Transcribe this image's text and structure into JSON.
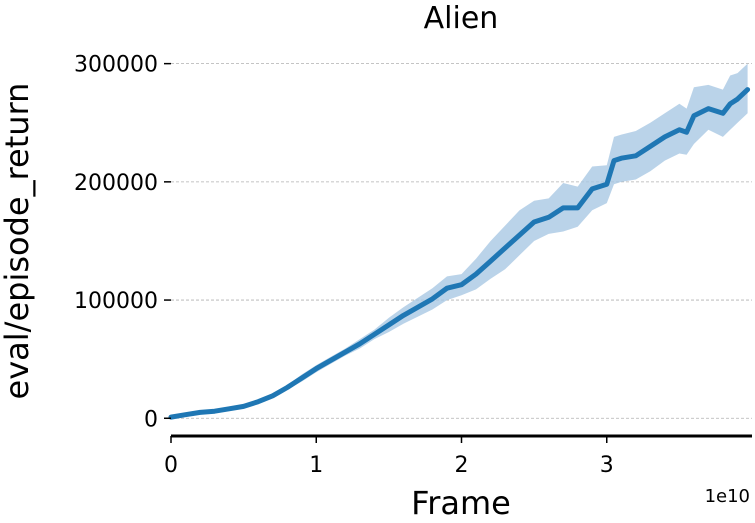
{
  "chart_data": {
    "type": "line",
    "title": "Alien",
    "xlabel": "Frame",
    "ylabel": "eval/episode_return",
    "x_offset_label": "1e10",
    "xlim": [
      0,
      4.0
    ],
    "ylim": [
      -15000,
      320000
    ],
    "xticks": [
      0,
      1,
      2,
      3
    ],
    "xtick_labels": [
      "0",
      "1",
      "2",
      "3"
    ],
    "yticks": [
      0,
      100000,
      200000,
      300000
    ],
    "ytick_labels": [
      "0",
      "100000",
      "200000",
      "300000"
    ],
    "grid": "y-dashed",
    "series": [
      {
        "color": "#1f77b4",
        "band_color": "#a9c8e3",
        "x": [
          0,
          0.1,
          0.2,
          0.3,
          0.4,
          0.5,
          0.6,
          0.7,
          0.8,
          0.9,
          1.0,
          1.1,
          1.2,
          1.3,
          1.4,
          1.5,
          1.6,
          1.7,
          1.8,
          1.9,
          2.0,
          2.1,
          2.2,
          2.3,
          2.4,
          2.5,
          2.6,
          2.7,
          2.8,
          2.9,
          3.0,
          3.05,
          3.1,
          3.2,
          3.3,
          3.4,
          3.5,
          3.55,
          3.6,
          3.7,
          3.8,
          3.85,
          3.9,
          3.97
        ],
        "y": [
          1000,
          3000,
          5000,
          6000,
          8000,
          10000,
          14000,
          19000,
          26000,
          34000,
          42000,
          49000,
          56000,
          63000,
          71000,
          79000,
          87000,
          94000,
          101000,
          110000,
          113000,
          122000,
          133000,
          144000,
          155000,
          166000,
          170000,
          178000,
          178000,
          194000,
          198000,
          218000,
          220000,
          222000,
          230000,
          238000,
          244000,
          242000,
          256000,
          262000,
          258000,
          266000,
          270000,
          278000
        ],
        "y_lower": [
          0,
          2000,
          4000,
          5000,
          7000,
          9000,
          12000,
          17000,
          24000,
          31000,
          39000,
          46000,
          53000,
          59000,
          67000,
          73000,
          80000,
          86000,
          92000,
          100000,
          104000,
          109000,
          118000,
          126000,
          138000,
          150000,
          156000,
          158000,
          162000,
          176000,
          182000,
          198000,
          200000,
          202000,
          209000,
          218000,
          224000,
          223000,
          232000,
          244000,
          238000,
          244000,
          250000,
          258000
        ],
        "y_upper": [
          2000,
          4000,
          6000,
          7000,
          9000,
          11000,
          16000,
          21000,
          28000,
          37000,
          45000,
          52000,
          59000,
          67000,
          75000,
          85000,
          94000,
          102000,
          110000,
          120000,
          122000,
          135000,
          150000,
          163000,
          176000,
          184000,
          186000,
          199000,
          196000,
          213000,
          214000,
          238000,
          240000,
          243000,
          250000,
          258000,
          266000,
          262000,
          280000,
          282000,
          278000,
          290000,
          292000,
          300000
        ]
      }
    ]
  }
}
